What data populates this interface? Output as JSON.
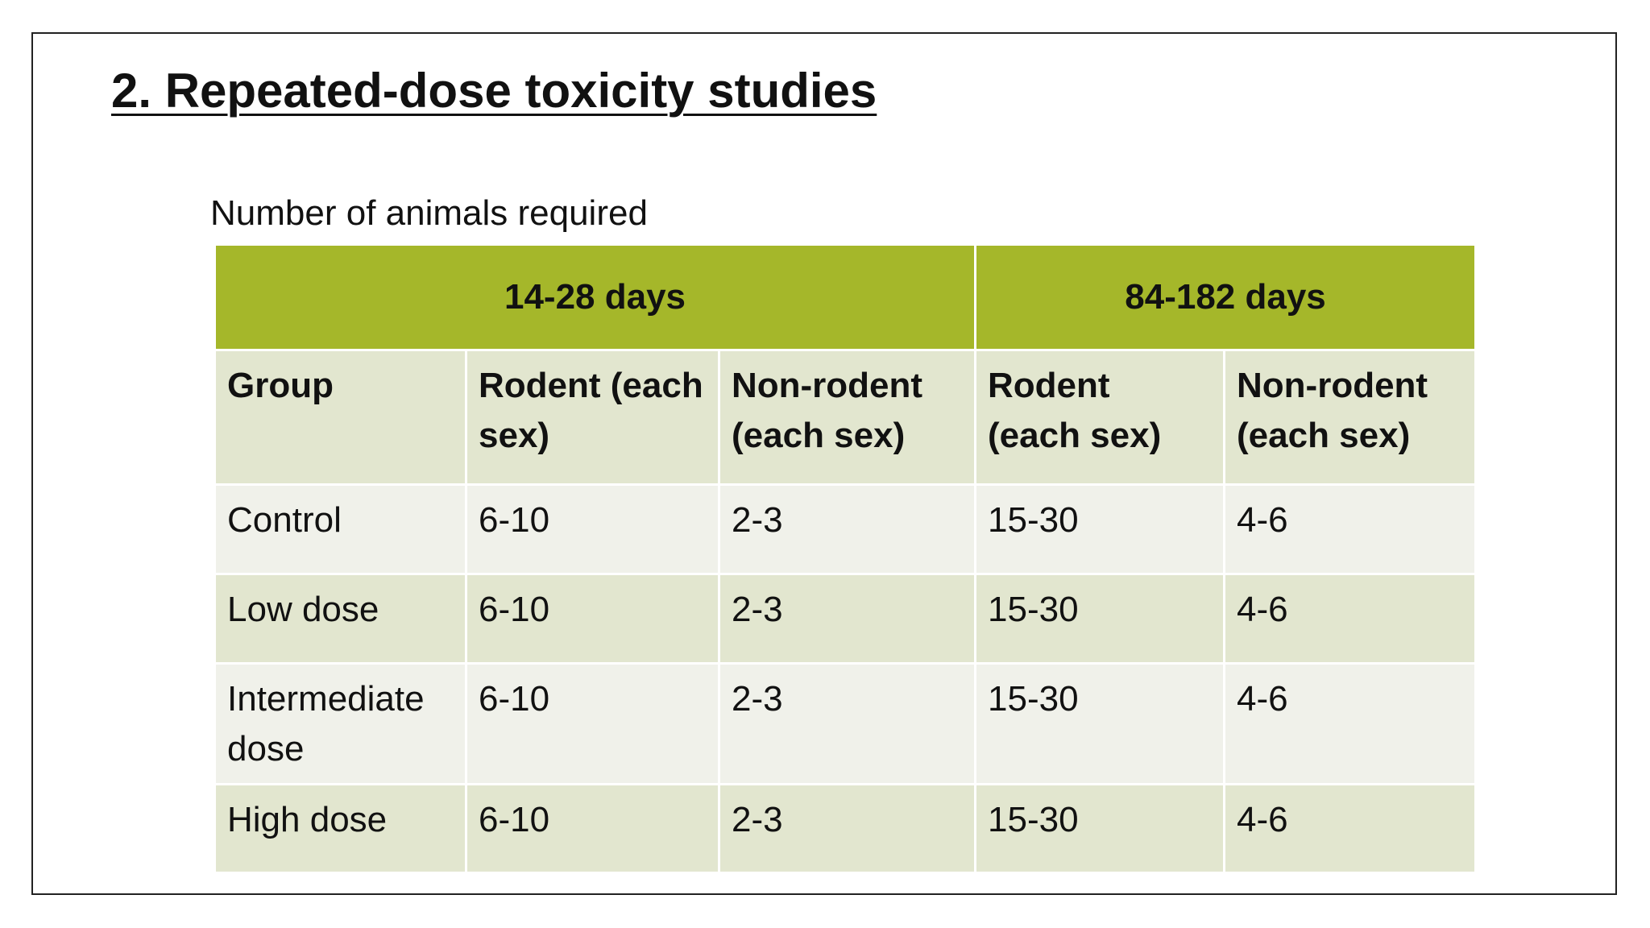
{
  "title": "2. Repeated-dose toxicity studies",
  "subtitle": "Number of animals required",
  "table": {
    "header_groups": [
      "14-28 days",
      "84-182 days"
    ],
    "columns": [
      "Group",
      "Rodent (each sex)",
      "Non-rodent (each sex)",
      "Rodent (each sex)",
      "Non-rodent (each sex)"
    ],
    "rows": [
      [
        "Control",
        "6-10",
        "2-3",
        "15-30",
        "4-6"
      ],
      [
        "Low  dose",
        "6-10",
        "2-3",
        "15-30",
        "4-6"
      ],
      [
        "Intermediate dose",
        "6-10",
        "2-3",
        "15-30",
        "4-6"
      ],
      [
        "High dose",
        "6-10",
        "2-3",
        "15-30",
        "4-6"
      ]
    ]
  }
}
